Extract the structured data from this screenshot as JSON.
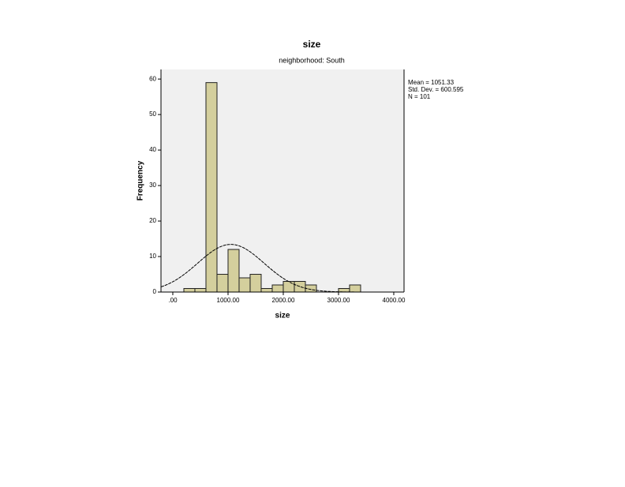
{
  "chart_data": {
    "type": "histogram",
    "title": "size",
    "subtitle": "neighborhood: South",
    "x_label": "size",
    "y_label": "Frequency",
    "bins": [
      200,
      400,
      600,
      800,
      1000,
      1200,
      1400,
      1600,
      1800,
      2000,
      2200,
      2400,
      2600,
      2800,
      3000,
      3200,
      3400
    ],
    "values": [
      1,
      1,
      59,
      5,
      12,
      4,
      5,
      1,
      2,
      3,
      3,
      2,
      0,
      0,
      1,
      2
    ],
    "color": "#d4cf9d",
    "xlim": [
      -214,
      4186
    ],
    "ylim": [
      0,
      62.7
    ],
    "xticks": [
      {
        "value": 0,
        "label": ".00"
      },
      {
        "value": 1000,
        "label": "1000.00"
      },
      {
        "value": 2000,
        "label": "2000.00"
      },
      {
        "value": 3000,
        "label": "3000.00"
      },
      {
        "value": 4000,
        "label": "4000.00"
      }
    ],
    "yticks": [
      0,
      10,
      20,
      30,
      40,
      50,
      60
    ],
    "stats": {
      "mean": {
        "value": 1051.33,
        "label": "Mean = 1051.33"
      },
      "std_dev": {
        "value": 600.595,
        "label": "Std. Dev. = 600.595"
      },
      "n": {
        "value": 101,
        "label": "N = 101"
      }
    }
  }
}
